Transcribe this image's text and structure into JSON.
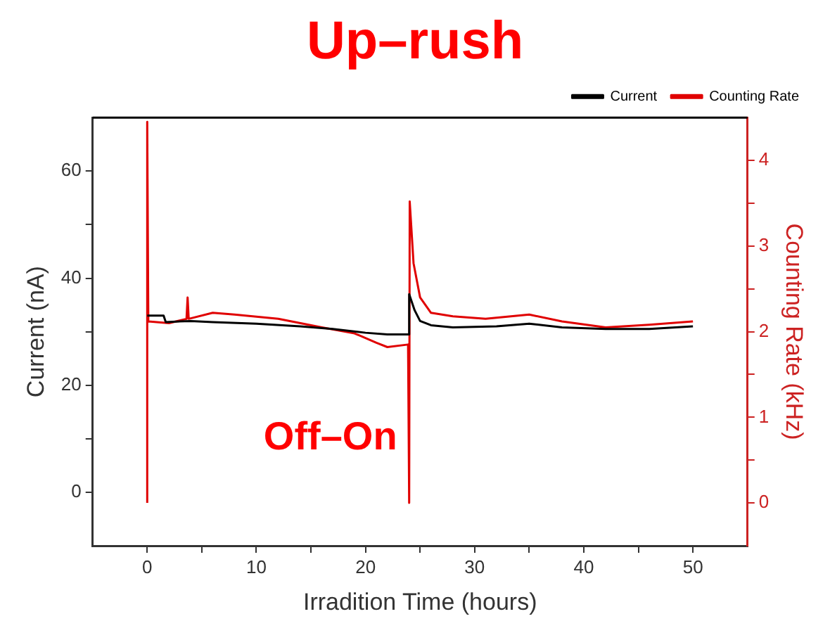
{
  "chart_data": {
    "type": "line",
    "title": "Up–rush",
    "xlabel": "Irradition Time (hours)",
    "ylabel": "Current (nA)",
    "y2label": "Counting Rate (kHz)",
    "annotations": [
      "Off–On"
    ],
    "legend": "top right",
    "marker": "none",
    "xlim": [
      -5,
      55
    ],
    "xticks": [
      0,
      {
        "value": 5,
        "label": null
      },
      10,
      {
        "value": 15,
        "label": null
      },
      20,
      {
        "value": 25,
        "label": null
      },
      30,
      {
        "value": 35,
        "label": null
      },
      40,
      {
        "value": 45,
        "label": null
      },
      50
    ],
    "ylim": [
      -10,
      70
    ],
    "yticks": [
      0,
      {
        "value": 10,
        "label": null
      },
      20,
      {
        "value": 30,
        "label": null
      },
      40,
      {
        "value": 50,
        "label": null
      },
      60
    ],
    "y2lim": [
      -0.5,
      4.5
    ],
    "y2ticks": [
      0,
      {
        "value": 0.5,
        "label": null
      },
      1,
      {
        "value": 1.5,
        "label": null
      },
      2,
      {
        "value": 2.5,
        "label": null
      },
      3,
      {
        "value": 3.5,
        "label": null
      },
      4
    ],
    "series": [
      {
        "name": "Current",
        "color": "#000000",
        "x": [
          0,
          1.5,
          1.7,
          4,
          6,
          10,
          14,
          17,
          20,
          22,
          23.9,
          24,
          24.5,
          25,
          26,
          28,
          32,
          35,
          38,
          42,
          46,
          50
        ],
        "values": [
          33,
          33,
          31.8,
          32,
          31.8,
          31.5,
          31,
          30.5,
          29.8,
          29.5,
          29.5,
          37,
          34,
          32,
          31.2,
          30.8,
          31,
          31.5,
          30.8,
          30.5,
          30.5,
          31
        ]
      },
      {
        "name": "Counting Rate",
        "color": "#e00000",
        "axis": "y2",
        "x": [
          0,
          0,
          0.1,
          2,
          3.6,
          3.7,
          3.8,
          6,
          8,
          12,
          16,
          19,
          21,
          22,
          23.9,
          24,
          24.05,
          24.4,
          25,
          26,
          28,
          31,
          35,
          38,
          42,
          46,
          50
        ],
        "values": [
          0,
          4.45,
          2.12,
          2.1,
          2.15,
          2.4,
          2.15,
          2.22,
          2.2,
          2.15,
          2.05,
          1.98,
          1.87,
          1.82,
          1.85,
          0,
          3.52,
          2.8,
          2.4,
          2.22,
          2.18,
          2.15,
          2.2,
          2.12,
          2.05,
          2.08,
          2.12
        ]
      }
    ]
  }
}
